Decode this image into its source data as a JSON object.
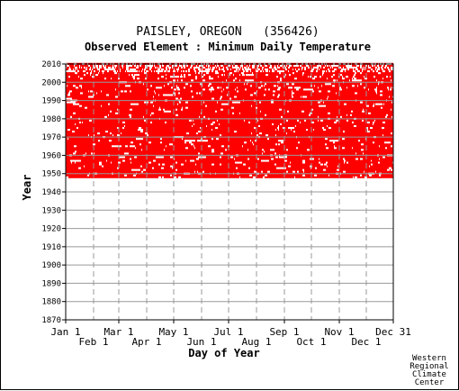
{
  "chart_data": {
    "type": "heatmap",
    "title": "PAISLEY, OREGON   (356426)",
    "subtitle": "Observed Element : Minimum Daily Temperature",
    "xlabel": "Day of Year",
    "ylabel": "Year",
    "x_ticks_row1": [
      "Jan 1",
      "Mar 1",
      "May 1",
      "Jul 1",
      "Sep 1",
      "Nov 1",
      "Dec 31"
    ],
    "x_ticks_row2": [
      "Feb 1",
      "Apr 1",
      "Jun 1",
      "Aug 1",
      "Oct 1",
      "Dec 1"
    ],
    "y_ticks": [
      "2010",
      "2000",
      "1990",
      "1980",
      "1970",
      "1960",
      "1950",
      "1940",
      "1930",
      "1920",
      "1910",
      "1900",
      "1890",
      "1880",
      "1870"
    ],
    "ylim": [
      1870,
      2010
    ],
    "xlim": [
      1,
      365
    ],
    "data_years": [
      1948,
      2010
    ],
    "data_color": "#ff0000",
    "grid": true
  },
  "credit": [
    "Western",
    "Regional",
    "Climate",
    "Center"
  ]
}
